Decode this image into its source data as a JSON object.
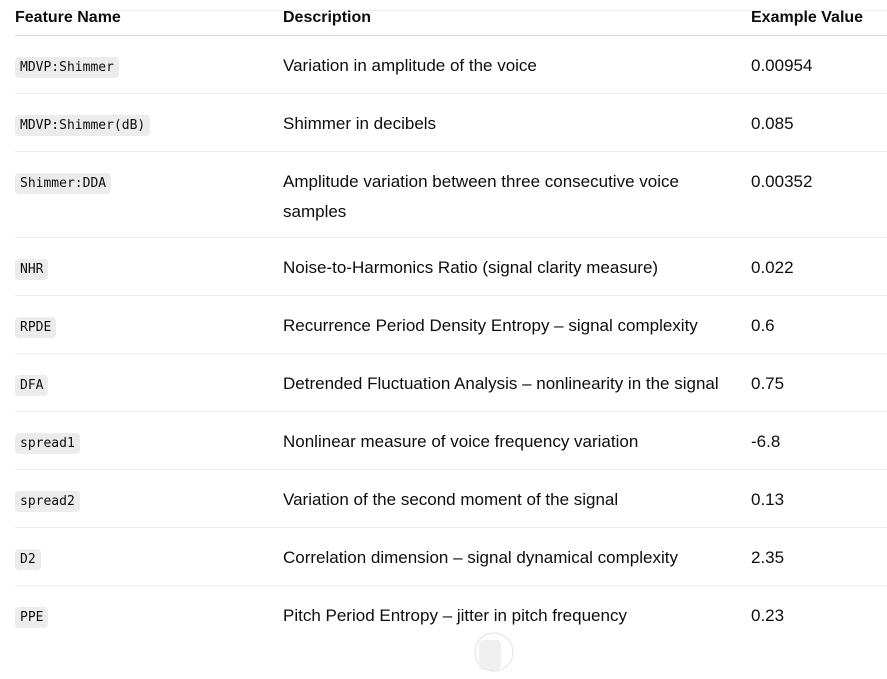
{
  "table": {
    "headers": [
      "Feature Name",
      "Description",
      "Example Value"
    ],
    "rows": [
      {
        "feature": "MDVP:Shimmer",
        "description": "Variation in amplitude of the voice",
        "value": "0.00954"
      },
      {
        "feature": "MDVP:Shimmer(dB)",
        "description": "Shimmer in decibels",
        "value": "0.085"
      },
      {
        "feature": "Shimmer:DDA",
        "description": "Amplitude variation between three consecutive voice samples",
        "value": "0.00352"
      },
      {
        "feature": "NHR",
        "description": "Noise-to-Harmonics Ratio (signal clarity measure)",
        "value": "0.022"
      },
      {
        "feature": "RPDE",
        "description": "Recurrence Period Density Entropy – signal complexity",
        "value": "0.6"
      },
      {
        "feature": "DFA",
        "description": "Detrended Fluctuation Analysis – nonlinearity in the signal",
        "value": "0.75"
      },
      {
        "feature": "spread1",
        "description": "Nonlinear measure of voice frequency variation",
        "value": "-6.8"
      },
      {
        "feature": "spread2",
        "description": "Variation of the second moment of the signal",
        "value": "0.13"
      },
      {
        "feature": "D2",
        "description": "Correlation dimension – signal dynamical complexity",
        "value": "2.35"
      },
      {
        "feature": "PPE",
        "description": "Pitch Period Entropy – jitter in pitch frequency",
        "value": "0.23"
      }
    ]
  },
  "icons": {
    "scroll_indicator": "scroll-down-icon"
  }
}
